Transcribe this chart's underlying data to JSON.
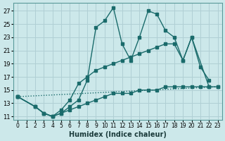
{
  "xlabel": "Humidex (Indice chaleur)",
  "bg_color": "#cce8ea",
  "grid_color": "#b0cfd4",
  "line_color": "#1a6b6b",
  "xlim": [
    -0.5,
    23.5
  ],
  "ylim": [
    10.5,
    28.2
  ],
  "xticks": [
    0,
    1,
    2,
    3,
    4,
    5,
    6,
    7,
    8,
    9,
    10,
    11,
    12,
    13,
    14,
    15,
    16,
    17,
    18,
    19,
    20,
    21,
    22,
    23
  ],
  "yticks": [
    11,
    13,
    15,
    17,
    19,
    21,
    23,
    25,
    27
  ],
  "line_dotted": {
    "x": [
      0,
      23
    ],
    "y": [
      14.0,
      15.5
    ]
  },
  "line_main": {
    "x": [
      0,
      2,
      3,
      4,
      5,
      6,
      7,
      8,
      9,
      10,
      11,
      12,
      13,
      14,
      15,
      16,
      17,
      18,
      19,
      20,
      21,
      22
    ],
    "y": [
      14,
      12.5,
      11.5,
      11,
      11.5,
      12.5,
      13.5,
      16.5,
      24.5,
      25.5,
      27.5,
      22,
      19.5,
      23,
      27,
      26.5,
      24,
      23,
      19.5,
      23,
      18.5,
      16.5
    ]
  },
  "line_mid": {
    "x": [
      0,
      2,
      3,
      4,
      5,
      6,
      7,
      8,
      9,
      10,
      11,
      12,
      13,
      14,
      15,
      16,
      17,
      18,
      19,
      20,
      22
    ],
    "y": [
      14,
      12.5,
      11.5,
      11,
      12,
      13.5,
      16,
      17,
      18,
      18.5,
      19,
      19.5,
      20,
      20.5,
      21,
      21.5,
      22,
      22,
      19.5,
      23,
      15.5
    ]
  },
  "line_low": {
    "x": [
      0,
      2,
      3,
      4,
      5,
      6,
      7,
      8,
      9,
      10,
      11,
      12,
      13,
      14,
      15,
      16,
      17,
      18,
      19,
      20,
      21,
      22,
      23
    ],
    "y": [
      14,
      12.5,
      11.5,
      11,
      11.5,
      12,
      12.5,
      13,
      13.5,
      14,
      14.5,
      14.5,
      14.5,
      15,
      15,
      15,
      15.5,
      15.5,
      15.5,
      15.5,
      15.5,
      15.5,
      15.5
    ]
  }
}
